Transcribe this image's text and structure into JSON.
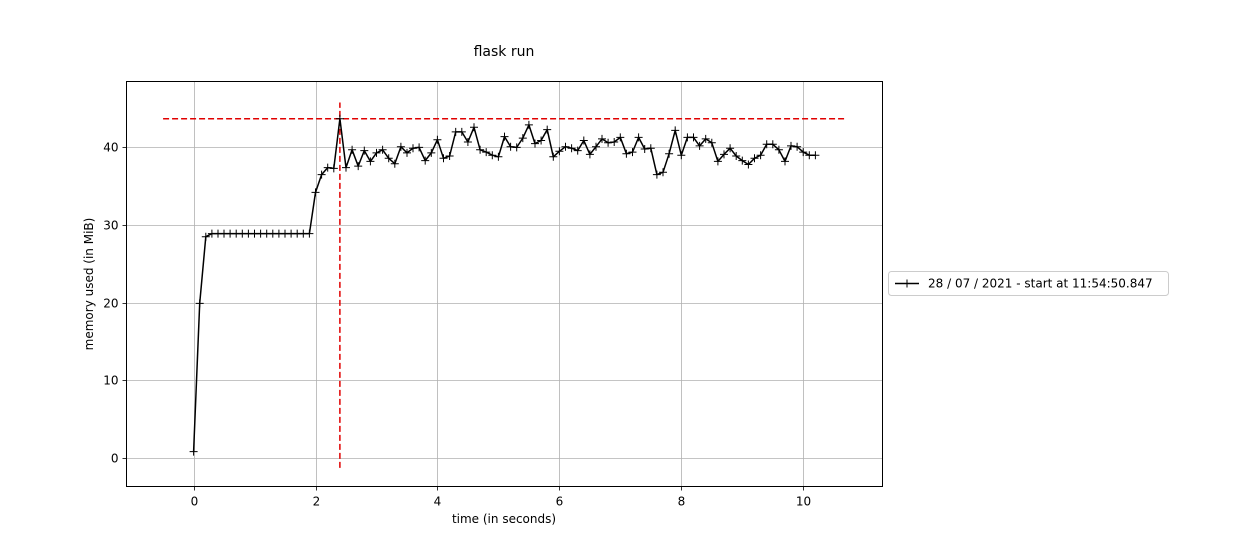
{
  "chart_data": {
    "type": "line",
    "title": "flask run",
    "xlabel": "time (in seconds)",
    "ylabel": "memory used (in MiB)",
    "xlim": [
      -1.1,
      11.3
    ],
    "ylim": [
      -3.7,
      48.5
    ],
    "xticks": [
      0,
      2,
      4,
      6,
      8,
      10
    ],
    "yticks": [
      0,
      10,
      20,
      30,
      40
    ],
    "grid": true,
    "legend_position": "right",
    "series": [
      {
        "name": "28 / 07 / 2021 - start at 11:54:50.847",
        "color": "#000000",
        "marker": "plus",
        "x": [
          0.0,
          0.1,
          0.2,
          0.3,
          0.4,
          0.5,
          0.6,
          0.7,
          0.8,
          0.9,
          1.0,
          1.1,
          1.2,
          1.3,
          1.4,
          1.5,
          1.6,
          1.7,
          1.8,
          1.9,
          2.0,
          2.1,
          2.2,
          2.3,
          2.4,
          2.5,
          2.6,
          2.7,
          2.8,
          2.9,
          3.0,
          3.1,
          3.2,
          3.3,
          3.4,
          3.5,
          3.6,
          3.7,
          3.8,
          3.9,
          4.0,
          4.1,
          4.2,
          4.3,
          4.4,
          4.5,
          4.6,
          4.7,
          4.8,
          4.9,
          5.0,
          5.1,
          5.2,
          5.3,
          5.4,
          5.5,
          5.6,
          5.7,
          5.8,
          5.9,
          6.0,
          6.1,
          6.2,
          6.3,
          6.4,
          6.5,
          6.6,
          6.7,
          6.8,
          6.9,
          7.0,
          7.1,
          7.2,
          7.3,
          7.4,
          7.5,
          7.6,
          7.7,
          7.8,
          7.9,
          8.0,
          8.1,
          8.2,
          8.3,
          8.4,
          8.5,
          8.6,
          8.7,
          8.8,
          8.9,
          9.0,
          9.1,
          9.2,
          9.3,
          9.4,
          9.5,
          9.6,
          9.7,
          9.8,
          9.9,
          10.0,
          10.1,
          10.2
        ],
        "y": [
          0.8,
          19.9,
          28.5,
          28.9,
          28.9,
          28.9,
          28.9,
          28.9,
          28.9,
          28.9,
          28.9,
          28.9,
          28.9,
          28.9,
          28.9,
          28.9,
          28.9,
          28.9,
          28.9,
          28.9,
          34.2,
          36.5,
          37.4,
          37.3,
          43.7,
          37.4,
          39.7,
          37.6,
          39.6,
          38.2,
          39.3,
          39.7,
          38.6,
          37.9,
          40.1,
          39.3,
          39.9,
          40.0,
          38.3,
          39.3,
          41.0,
          38.6,
          38.9,
          42.0,
          42.0,
          40.7,
          42.6,
          39.7,
          39.4,
          39.0,
          38.8,
          41.4,
          40.1,
          40.0,
          41.2,
          42.9,
          40.5,
          40.9,
          42.3,
          38.8,
          39.5,
          40.1,
          39.9,
          39.6,
          40.9,
          39.1,
          40.1,
          41.1,
          40.6,
          40.7,
          41.3,
          39.2,
          39.4,
          41.3,
          39.8,
          39.9,
          36.5,
          36.8,
          39.2,
          42.2,
          39.0,
          41.3,
          41.3,
          40.2,
          41.1,
          40.6,
          38.2,
          39.1,
          39.9,
          38.9,
          38.3,
          37.8,
          38.6,
          39.0,
          40.4,
          40.4,
          39.7,
          38.2,
          40.2,
          40.1,
          39.4,
          39.0,
          39.0
        ]
      }
    ],
    "reference_lines": [
      {
        "orientation": "horizontal",
        "y": 43.7,
        "x_from": -0.5,
        "x_to": 10.7,
        "color": "#e00000",
        "style": "dashed"
      },
      {
        "orientation": "vertical",
        "x": 2.4,
        "y_from": -1.3,
        "y_to": 45.8,
        "color": "#e00000",
        "style": "dashed"
      }
    ]
  }
}
